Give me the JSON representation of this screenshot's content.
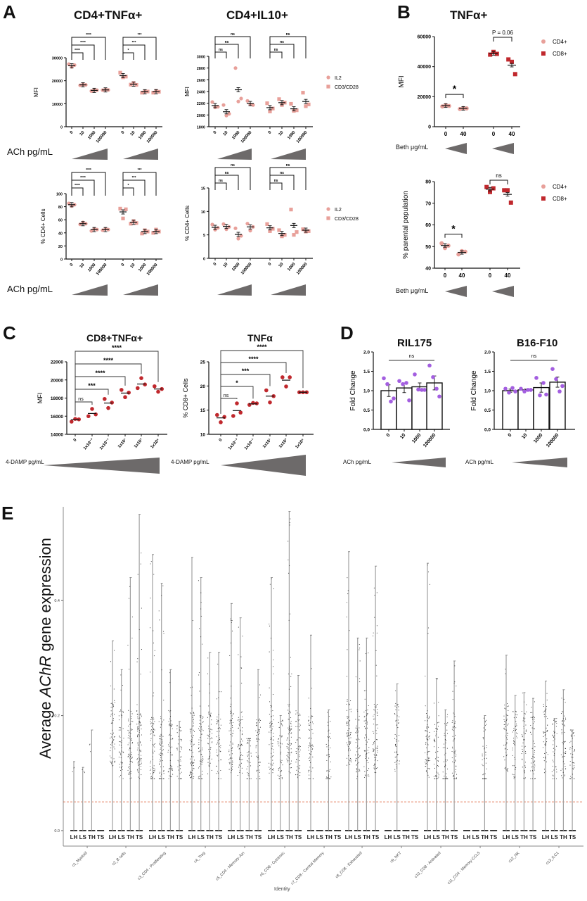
{
  "panels": {
    "A": {
      "letter": "A",
      "titles": [
        "CD4+TNFα+",
        "CD4+IL10+"
      ],
      "treatment_label": "ACh pg/mL"
    },
    "B": {
      "letter": "B",
      "title": "TNFα+",
      "treatment_label": "Beth μg/mL"
    },
    "C": {
      "letter": "C",
      "titles": [
        "CD8+TNFα+",
        "TNFα"
      ],
      "treatment_label": "4-DAMP pg/mL"
    },
    "D": {
      "letter": "D",
      "titles": [
        "RIL175",
        "B16-F10"
      ],
      "treatment_label": "ACh pg/mL"
    },
    "E": {
      "letter": "E",
      "ylabel_pre": "Average ",
      "ylabel_italic": "AChR",
      "ylabel_post": " gene expression",
      "xlabel": "Identity"
    }
  },
  "colors": {
    "cd4_pink": "#e8a09a",
    "cd8_red": "#c0282d",
    "dot_red": "#c0282d",
    "purple": "#a35ee0",
    "wedge": "#6d6a6a",
    "line_gray": "#a0a0a0",
    "threshold": "#d9542b"
  },
  "chart_data": [
    {
      "id": "A1",
      "type": "scatter",
      "title": "CD4+TNFα+",
      "ylabel": "MFI",
      "ylim": [
        0,
        30000
      ],
      "yticks": [
        0,
        10000,
        20000,
        30000
      ],
      "categories": [
        "0",
        "10",
        "1000",
        "100000",
        "0",
        "10",
        "1000",
        "100000"
      ],
      "series": [
        {
          "name": "IL2",
          "marker": "circle",
          "groups": [
            0,
            1,
            2,
            3
          ],
          "means": [
            26500,
            18200,
            15800,
            16000
          ],
          "points": [
            [
              27200,
              26000,
              26800
            ],
            [
              18000,
              18400,
              18200
            ],
            [
              15500,
              16000,
              15900
            ],
            [
              15900,
              16100,
              16000
            ]
          ]
        },
        {
          "name": "CD3/CD28",
          "marker": "square",
          "groups": [
            4,
            5,
            6,
            7
          ],
          "means": [
            22200,
            18500,
            15200,
            15200
          ],
          "points": [
            [
              23500,
              21500,
              21800
            ],
            [
              18300,
              19000,
              18200
            ],
            [
              14800,
              15400,
              15300
            ],
            [
              14800,
              15600,
              15200
            ]
          ]
        }
      ],
      "significance": [
        [
          "0",
          "10",
          "****"
        ],
        [
          "0",
          "1000",
          "****"
        ],
        [
          "0",
          "100000",
          "****"
        ],
        [
          "0",
          "10",
          "*"
        ],
        [
          "0",
          "1000",
          "***"
        ],
        [
          "0",
          "100000",
          "***"
        ]
      ]
    },
    {
      "id": "A2",
      "type": "scatter",
      "title": "CD4+IL10+",
      "ylabel": "MFI",
      "ylim": [
        1800,
        3000
      ],
      "yticks": [
        1800,
        2000,
        2200,
        2400,
        2600,
        2800,
        3000
      ],
      "categories": [
        "0",
        "10",
        "1000",
        "100000",
        "0",
        "10",
        "1000",
        "100000"
      ],
      "series": [
        {
          "name": "IL2",
          "marker": "circle",
          "means": [
            2160,
            2055,
            2430,
            2195
          ],
          "points": [
            [
              2220,
              2130,
              2140
            ],
            [
              2170,
              1990,
              2020
            ],
            [
              2800,
              2230,
              2280
            ],
            [
              2240,
              2180,
              2170
            ]
          ]
        },
        {
          "name": "CD3/CD28",
          "marker": "square",
          "means": [
            2125,
            2210,
            2105,
            2230
          ],
          "points": [
            [
              2200,
              2060,
              2110
            ],
            [
              2270,
              2170,
              2210
            ],
            [
              2190,
              2070,
              2080
            ],
            [
              2380,
              2150,
              2180
            ]
          ]
        }
      ],
      "significance": [
        "ns",
        "ns",
        "ns",
        "ns",
        "ns",
        "ns"
      ],
      "legend": [
        "IL2",
        "CD3/CD28"
      ]
    },
    {
      "id": "A3",
      "type": "scatter",
      "ylabel": "% CD4+ Cells",
      "ylim": [
        0,
        100
      ],
      "yticks": [
        0,
        20,
        40,
        60,
        80,
        100
      ],
      "categories": [
        "0",
        "10",
        "1000",
        "100000",
        "0",
        "10",
        "1000",
        "100000"
      ],
      "series": [
        {
          "name": "IL2",
          "marker": "circle",
          "means": [
            83,
            54,
            45,
            45
          ],
          "points": [
            [
              85,
              81,
              83
            ],
            [
              53,
              56,
              54
            ],
            [
              43,
              46,
              45
            ],
            [
              44,
              46,
              45
            ]
          ]
        },
        {
          "name": "CD3/CD28",
          "marker": "square",
          "means": [
            72,
            56,
            42,
            42
          ],
          "points": [
            [
              77,
              62,
              76
            ],
            [
              54,
              58,
              55
            ],
            [
              39,
              44,
              42
            ],
            [
              40,
              45,
              42
            ]
          ]
        }
      ],
      "significance": [
        [
          "0",
          "10",
          "****"
        ],
        [
          "0",
          "1000",
          "****"
        ],
        [
          "0",
          "100000",
          "****"
        ],
        [
          "0",
          "10",
          "*"
        ],
        [
          "0",
          "1000",
          "***"
        ],
        [
          "0",
          "100000",
          "***"
        ]
      ]
    },
    {
      "id": "A4",
      "type": "scatter",
      "ylabel": "% CD4+ Cells",
      "ylim": [
        0,
        15
      ],
      "yticks": [
        0,
        5,
        10,
        15
      ],
      "categories": [
        "0",
        "10",
        "1000",
        "100000",
        "0",
        "10",
        "1000",
        "100000"
      ],
      "series": [
        {
          "name": "IL2",
          "marker": "circle",
          "means": [
            6.6,
            6.8,
            5.1,
            6.7
          ],
          "points": [
            [
              7.2,
              6.1,
              6.5
            ],
            [
              7.3,
              6.2,
              6.7
            ],
            [
              6.4,
              4.2,
              4.8
            ],
            [
              7.4,
              5.9,
              6.7
            ]
          ]
        },
        {
          "name": "CD3/CD28",
          "marker": "square",
          "means": [
            6.5,
            5.3,
            7.0,
            6.0
          ],
          "points": [
            [
              7.3,
              5.8,
              6.3
            ],
            [
              6.0,
              4.7,
              5.0
            ],
            [
              10.4,
              5.0,
              5.6
            ],
            [
              6.2,
              5.7,
              5.8
            ]
          ]
        }
      ],
      "significance": [
        "ns",
        "ns",
        "ns",
        "ns",
        "ns",
        "ns"
      ],
      "legend": [
        "IL2",
        "CD3/CD28"
      ]
    },
    {
      "id": "B1",
      "type": "scatter",
      "title": "TNFα+",
      "ylabel": "MFI",
      "ylim": [
        0,
        60000
      ],
      "yticks": [
        0,
        20000,
        40000,
        60000
      ],
      "categories": [
        "0",
        "40",
        "0",
        "40"
      ],
      "series": [
        {
          "name": "CD4+",
          "marker": "circle",
          "means": [
            14000,
            12200
          ],
          "points": [
            [
              13500,
              14500,
              13800
            ],
            [
              11800,
              12400,
              12200
            ]
          ]
        },
        {
          "name": "CD8+",
          "marker": "square",
          "means": [
            48800,
            41000
          ],
          "points": [
            [
              48000,
              49800,
              48500
            ],
            [
              44800,
              43200,
              35000
            ]
          ]
        }
      ],
      "significance": [
        "*",
        "P = 0.06"
      ],
      "legend": [
        "CD4+",
        "CD8+"
      ]
    },
    {
      "id": "B2",
      "type": "scatter",
      "ylabel": "% parental population",
      "ylim": [
        40,
        80
      ],
      "yticks": [
        40,
        50,
        60,
        70,
        80
      ],
      "categories": [
        "0",
        "40",
        "0",
        "40"
      ],
      "series": [
        {
          "name": "CD4+",
          "marker": "circle",
          "means": [
            50.5,
            47.3
          ],
          "points": [
            [
              51.5,
              49.3,
              50.4
            ],
            [
              46.4,
              47.9,
              47.6
            ]
          ]
        },
        {
          "name": "CD8+",
          "marker": "square",
          "means": [
            76.5,
            74.1
          ],
          "points": [
            [
              77.5,
              75.2,
              76.9
            ],
            [
              76.0,
              76.0,
              70.3
            ]
          ]
        }
      ],
      "significance": [
        "*",
        "ns"
      ],
      "legend": [
        "CD4+",
        "CD8+"
      ]
    },
    {
      "id": "C1",
      "type": "scatter",
      "title": "CD8+TNFα+",
      "ylabel": "MFI",
      "ylim": [
        14000,
        22000
      ],
      "yticks": [
        14000,
        16000,
        18000,
        20000,
        22000
      ],
      "categories": [
        "0",
        "1x10⁻³",
        "1x10⁻¹",
        "1x10¹",
        "1x10³",
        "1x10⁵"
      ],
      "series": [
        {
          "name": "CD8+",
          "marker": "circle",
          "means": [
            15600,
            16300,
            17450,
            18550,
            19550,
            19000
          ],
          "points": [
            [
              15400,
              15700,
              15650
            ],
            [
              16000,
              16800,
              16200
            ],
            [
              17900,
              16900,
              17500
            ],
            [
              18900,
              18100,
              18600
            ],
            [
              19100,
              20200,
              19500
            ],
            [
              19300,
              18700,
              19000
            ]
          ]
        }
      ],
      "significance": [
        "ns",
        "***",
        "****",
        "****",
        "****"
      ]
    },
    {
      "id": "C2",
      "type": "scatter",
      "title": "TNFα",
      "ylabel": "% CD8+ Cells",
      "ylim": [
        10,
        25
      ],
      "yticks": [
        10,
        15,
        20,
        25
      ],
      "categories": [
        "0",
        "1x10⁻³",
        "1x10⁻¹",
        "1x10¹",
        "1x10³",
        "1x10⁵"
      ],
      "series": [
        {
          "name": "CD8+",
          "marker": "circle",
          "means": [
            13.4,
            14.9,
            16.3,
            17.9,
            21.2,
            18.7
          ],
          "points": [
            [
              14.0,
              12.5,
              13.6
            ],
            [
              13.8,
              16.4,
              14.5
            ],
            [
              16.1,
              16.5,
              16.4
            ],
            [
              19.1,
              16.6,
              17.9
            ],
            [
              21.8,
              19.9,
              21.8
            ],
            [
              18.7,
              18.7,
              18.7
            ]
          ]
        }
      ],
      "significance": [
        "ns",
        "*",
        "***",
        "****",
        "****"
      ]
    },
    {
      "id": "D1",
      "type": "bar",
      "title": "RIL175",
      "ylabel": "Fold Change",
      "ylim": [
        0,
        2.0
      ],
      "yticks": [
        "0.0",
        "0.5",
        "1.0",
        "1.5",
        "2.0"
      ],
      "categories": [
        "0",
        "10",
        "1000",
        "100000"
      ],
      "values": [
        1.0,
        1.07,
        1.1,
        1.2
      ],
      "errors": [
        0.15,
        0.12,
        0.1,
        0.18
      ],
      "points": [
        [
          1.32,
          1.17,
          0.72,
          0.8
        ],
        [
          1.25,
          1.17,
          1.2,
          0.75
        ],
        [
          1.42,
          1.03,
          1.02,
          1.02
        ],
        [
          1.65,
          1.35,
          1.05,
          0.85
        ]
      ],
      "significance": "ns"
    },
    {
      "id": "D2",
      "type": "bar",
      "title": "B16-F10",
      "ylabel": "Fold Change",
      "ylim": [
        0,
        2.0
      ],
      "yticks": [
        "0.0",
        "0.5",
        "1.0",
        "1.5",
        "2.0"
      ],
      "categories": [
        "0",
        "10",
        "1000",
        "100000"
      ],
      "values": [
        1.0,
        1.02,
        1.08,
        1.22
      ],
      "errors": [
        0.04,
        0.02,
        0.12,
        0.13
      ],
      "points": [
        [
          1.05,
          0.95,
          1.07,
          0.98
        ],
        [
          1.05,
          0.98,
          1.02,
          1.02
        ],
        [
          1.33,
          0.88,
          1.2,
          0.9
        ],
        [
          1.56,
          1.3,
          0.98,
          1.12
        ]
      ],
      "significance": "ns"
    },
    {
      "id": "E",
      "type": "scatter",
      "ylabel": "Average AChR gene expression",
      "xlabel": "Identity",
      "ylim": [
        0,
        0.56
      ],
      "yticks": [
        "0.0",
        "0.2",
        "0.4"
      ],
      "threshold": 0.05,
      "groups": [
        "LH",
        "LS",
        "TH",
        "TS"
      ],
      "categories": [
        "c1_Myeloid",
        "c2_B cells",
        "c3_CD4 - Proliferating",
        "c4_Treg",
        "c5_CD4 - Memory-Jun",
        "c6_CD8 - Cytotoxic",
        "c7_CD8 - Central Memory",
        "c8_CD8 - Exhausted",
        "c9_NKT",
        "c10_CD8 - Activated",
        "c11_CD4 - Memory-CCL5",
        "c12_NK",
        "c13_ILC1"
      ],
      "max_values": [
        [
          0.12,
          0.11,
          0.175,
          0.0
        ],
        [
          0.33,
          0.28,
          0.44,
          0.55
        ],
        [
          0.48,
          0.43,
          0.28,
          0.19
        ],
        [
          0.475,
          0.44,
          0.31,
          0.31
        ],
        [
          0.395,
          0.37,
          0.16,
          0.28
        ],
        [
          0.44,
          0.2,
          0.555,
          0.27
        ],
        [
          0.34,
          0.0,
          0.21,
          0.0
        ],
        [
          0.485,
          0.335,
          0.335,
          0.46
        ],
        [
          0.0,
          0.255,
          0.0,
          0.0
        ],
        [
          0.465,
          0.265,
          0.21,
          0.295
        ],
        [
          0.0,
          0.0,
          0.2,
          0.0
        ],
        [
          0.305,
          0.235,
          0.24,
          0.23
        ],
        [
          0.26,
          0.195,
          0.245,
          0.175
        ]
      ],
      "dense_center": [
        [
          0.0,
          0.0,
          0.0,
          0.0
        ],
        [
          0.17,
          0.15,
          0.15,
          0.15
        ],
        [
          0.14,
          0.14,
          0.15,
          0.13
        ],
        [
          0.15,
          0.14,
          0.15,
          0.14
        ],
        [
          0.16,
          0.15,
          0.12,
          0.14
        ],
        [
          0.16,
          0.14,
          0.16,
          0.15
        ],
        [
          0.14,
          0.0,
          0.13,
          0.0
        ],
        [
          0.17,
          0.14,
          0.15,
          0.16
        ],
        [
          0.0,
          0.16,
          0.0,
          0.0
        ],
        [
          0.15,
          0.13,
          0.13,
          0.14
        ],
        [
          0.0,
          0.0,
          0.13,
          0.0
        ],
        [
          0.16,
          0.15,
          0.15,
          0.14
        ],
        [
          0.16,
          0.14,
          0.15,
          0.13
        ]
      ]
    }
  ]
}
